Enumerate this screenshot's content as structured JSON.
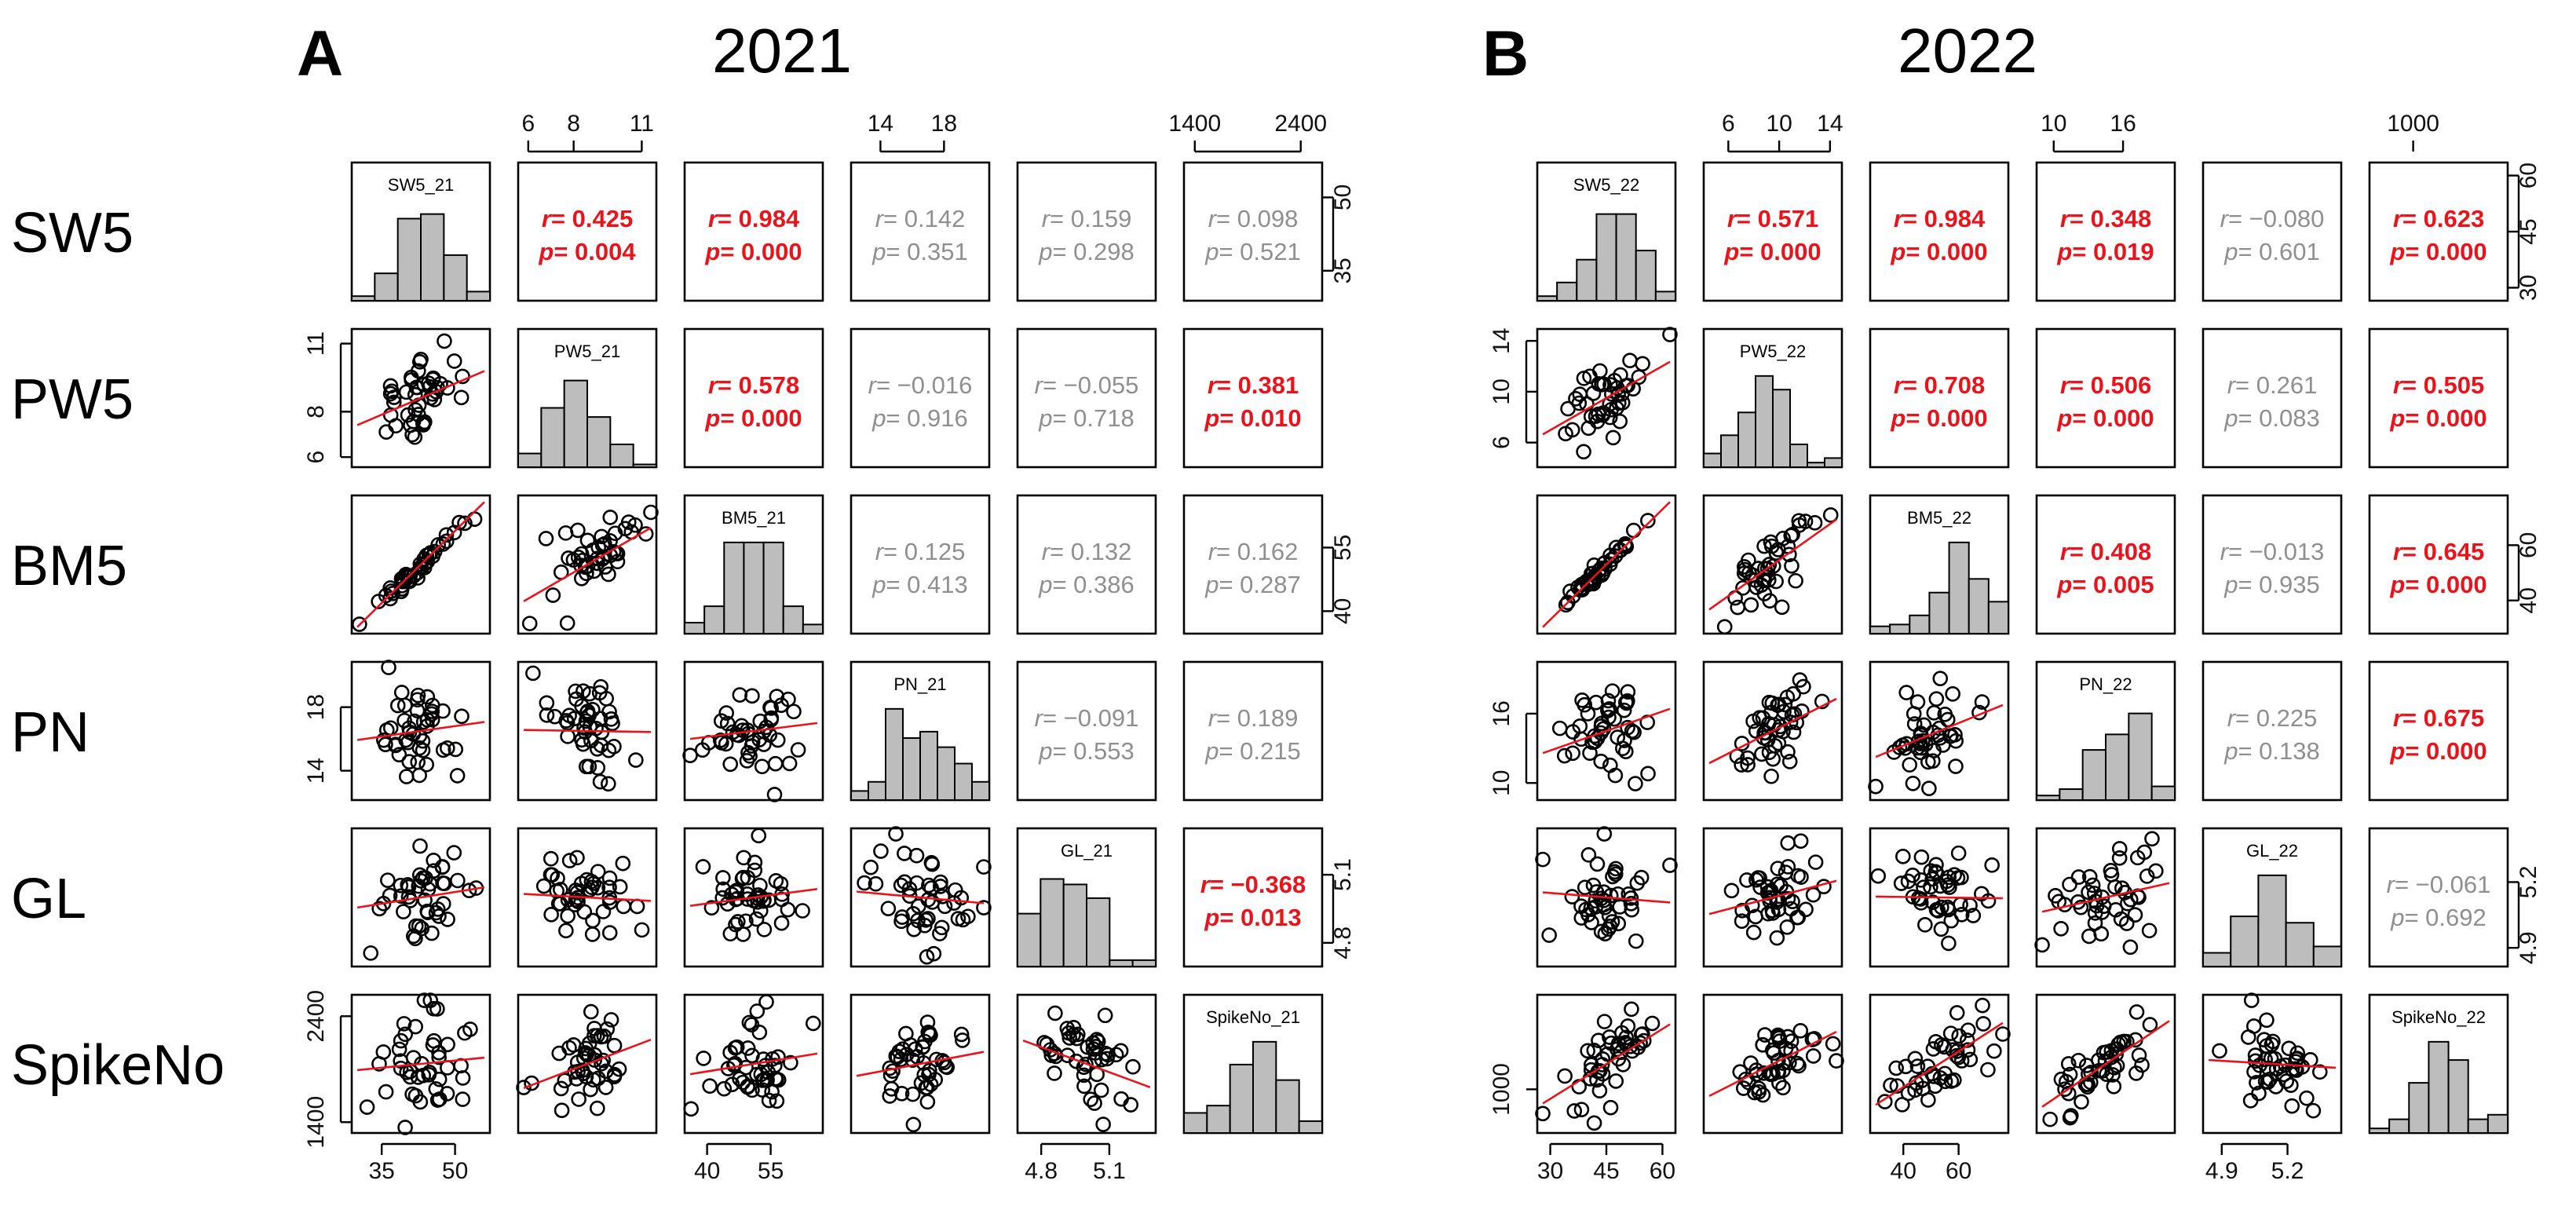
{
  "colors": {
    "significant": "#e8141c",
    "not_significant": "#8f8f8f",
    "bar": "#bdbdbd",
    "regression": "#e8141c"
  },
  "row_labels": [
    "SW5",
    "PW5",
    "BM5",
    "PN",
    "GL",
    "SpikeNo"
  ],
  "chart_data": [
    {
      "type": "scatter-matrix",
      "panel_label": "A",
      "title": "2021",
      "variables": [
        "SW5_21",
        "PW5_21",
        "BM5_21",
        "PN_21",
        "GL_21",
        "SpikeNo_21"
      ],
      "ranges": [
        [
          30,
          56
        ],
        [
          5.8,
          11.4
        ],
        [
          36,
          66
        ],
        [
          12.5,
          20.5
        ],
        [
          4.72,
          5.28
        ],
        [
          1350,
          2550
        ]
      ],
      "axis_ticks": [
        {
          "values": [
            35,
            50
          ],
          "labels": [
            "35",
            "50"
          ]
        },
        {
          "values": [
            6,
            8,
            11
          ],
          "labels": [
            "6",
            "8",
            "11"
          ]
        },
        {
          "values": [
            40,
            55
          ],
          "labels": [
            "40",
            "55"
          ]
        },
        {
          "values": [
            14,
            18
          ],
          "labels": [
            "14",
            "18"
          ]
        },
        {
          "values": [
            4.8,
            5.1
          ],
          "labels": [
            "4.8",
            "5.1"
          ]
        },
        {
          "values": [
            1400,
            2400
          ],
          "labels": [
            "1400",
            "2400"
          ]
        }
      ],
      "histograms": [
        [
          0.05,
          0.3,
          0.9,
          0.95,
          0.5,
          0.1
        ],
        [
          0.15,
          0.65,
          0.95,
          0.55,
          0.25,
          0.03
        ],
        [
          0.12,
          0.3,
          1.0,
          1.0,
          1.0,
          0.3,
          0.1
        ],
        [
          0.1,
          0.2,
          1.0,
          0.68,
          0.75,
          0.58,
          0.4,
          0.2
        ],
        [
          0.58,
          0.96,
          0.9,
          0.75,
          0.07,
          0.07
        ],
        [
          0.22,
          0.3,
          0.75,
          1.0,
          0.58,
          0.13
        ]
      ],
      "correlations": [
        {
          "i": 0,
          "j": 1,
          "r": "0.425",
          "p": "0.004",
          "significant": true
        },
        {
          "i": 0,
          "j": 2,
          "r": "0.984",
          "p": "0.000",
          "significant": true
        },
        {
          "i": 0,
          "j": 3,
          "r": "0.142",
          "p": "0.351",
          "significant": false
        },
        {
          "i": 0,
          "j": 4,
          "r": "0.159",
          "p": "0.298",
          "significant": false
        },
        {
          "i": 0,
          "j": 5,
          "r": "0.098",
          "p": "0.521",
          "significant": false
        },
        {
          "i": 1,
          "j": 2,
          "r": "0.578",
          "p": "0.000",
          "significant": true
        },
        {
          "i": 1,
          "j": 3,
          "r": "−0.016",
          "p": "0.916",
          "significant": false
        },
        {
          "i": 1,
          "j": 4,
          "r": "−0.055",
          "p": "0.718",
          "significant": false
        },
        {
          "i": 1,
          "j": 5,
          "r": "0.381",
          "p": "0.010",
          "significant": true
        },
        {
          "i": 2,
          "j": 3,
          "r": "0.125",
          "p": "0.413",
          "significant": false
        },
        {
          "i": 2,
          "j": 4,
          "r": "0.132",
          "p": "0.386",
          "significant": false
        },
        {
          "i": 2,
          "j": 5,
          "r": "0.162",
          "p": "0.287",
          "significant": false
        },
        {
          "i": 3,
          "j": 4,
          "r": "−0.091",
          "p": "0.553",
          "significant": false
        },
        {
          "i": 3,
          "j": 5,
          "r": "0.189",
          "p": "0.215",
          "significant": false
        },
        {
          "i": 4,
          "j": 5,
          "r": "−0.368",
          "p": "0.013",
          "significant": true
        }
      ]
    },
    {
      "type": "scatter-matrix",
      "panel_label": "B",
      "title": "2022",
      "variables": [
        "SW5_22",
        "PW5_22",
        "BM5_22",
        "PN_22",
        "GL_22",
        "SpikeNo_22"
      ],
      "ranges": [
        [
          28,
          62
        ],
        [
          4.5,
          14.5
        ],
        [
          30,
          76
        ],
        [
          9,
          20
        ],
        [
          4.84,
          5.42
        ],
        [
          700,
          1700
        ]
      ],
      "axis_ticks": [
        {
          "values": [
            30,
            45,
            60
          ],
          "labels": [
            "30",
            "45",
            "60"
          ]
        },
        {
          "values": [
            6,
            10,
            14
          ],
          "labels": [
            "6",
            "10",
            "14"
          ]
        },
        {
          "values": [
            40,
            60
          ],
          "labels": [
            "40",
            "60"
          ]
        },
        {
          "values": [
            10,
            16
          ],
          "labels": [
            "10",
            "16"
          ]
        },
        {
          "values": [
            4.9,
            5.2
          ],
          "labels": [
            "4.9",
            "5.2"
          ]
        },
        {
          "values": [
            1000
          ],
          "labels": [
            "1000"
          ]
        }
      ],
      "histograms": [
        [
          0.05,
          0.2,
          0.45,
          0.95,
          0.95,
          0.55,
          0.1
        ],
        [
          0.15,
          0.35,
          0.6,
          1.0,
          0.85,
          0.25,
          0.05,
          0.1
        ],
        [
          0.08,
          0.1,
          0.2,
          0.45,
          1.0,
          0.6,
          0.35
        ],
        [
          0.05,
          0.12,
          0.55,
          0.72,
          0.95,
          0.15
        ],
        [
          0.15,
          0.55,
          1.0,
          0.48,
          0.22
        ],
        [
          0.05,
          0.15,
          0.55,
          1.0,
          0.8,
          0.15,
          0.2
        ]
      ],
      "correlations": [
        {
          "i": 0,
          "j": 1,
          "r": "0.571",
          "p": "0.000",
          "significant": true
        },
        {
          "i": 0,
          "j": 2,
          "r": "0.984",
          "p": "0.000",
          "significant": true
        },
        {
          "i": 0,
          "j": 3,
          "r": "0.348",
          "p": "0.019",
          "significant": true
        },
        {
          "i": 0,
          "j": 4,
          "r": "−0.080",
          "p": "0.601",
          "significant": false
        },
        {
          "i": 0,
          "j": 5,
          "r": "0.623",
          "p": "0.000",
          "significant": true
        },
        {
          "i": 1,
          "j": 2,
          "r": "0.708",
          "p": "0.000",
          "significant": true
        },
        {
          "i": 1,
          "j": 3,
          "r": "0.506",
          "p": "0.000",
          "significant": true
        },
        {
          "i": 1,
          "j": 4,
          "r": "0.261",
          "p": "0.083",
          "significant": false
        },
        {
          "i": 1,
          "j": 5,
          "r": "0.505",
          "p": "0.000",
          "significant": true
        },
        {
          "i": 2,
          "j": 3,
          "r": "0.408",
          "p": "0.005",
          "significant": true
        },
        {
          "i": 2,
          "j": 4,
          "r": "−0.013",
          "p": "0.935",
          "significant": false
        },
        {
          "i": 2,
          "j": 5,
          "r": "0.645",
          "p": "0.000",
          "significant": true
        },
        {
          "i": 3,
          "j": 4,
          "r": "0.225",
          "p": "0.138",
          "significant": false
        },
        {
          "i": 3,
          "j": 5,
          "r": "0.675",
          "p": "0.000",
          "significant": true
        },
        {
          "i": 4,
          "j": 5,
          "r": "−0.061",
          "p": "0.692",
          "significant": false
        }
      ]
    }
  ]
}
